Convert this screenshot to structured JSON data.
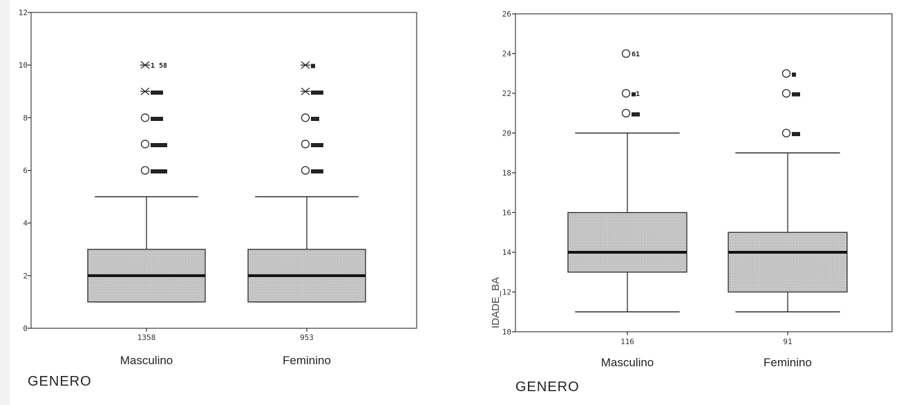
{
  "chart_data": [
    {
      "type": "box",
      "xlabel": "GENERO",
      "ylabel": "",
      "ylim": [
        0,
        12
      ],
      "yticks": [
        "0",
        "2",
        "4",
        "6",
        "8",
        "10",
        "12"
      ],
      "categories": [
        "Masculino",
        "Feminino"
      ],
      "n_labels": [
        "1358",
        "953"
      ],
      "boxes": [
        {
          "category": "Masculino",
          "whisker_low": 1,
          "q1": 1,
          "median": 2,
          "q3": 3,
          "whisker_high": 5,
          "outliers": [
            {
              "value": 6,
              "marker": "circle",
              "label": "■■■■"
            },
            {
              "value": 7,
              "marker": "circle",
              "label": "■■■■"
            },
            {
              "value": 8,
              "marker": "circle",
              "label": "■■■"
            },
            {
              "value": 9,
              "marker": "star",
              "label": "■■■"
            },
            {
              "value": 10,
              "marker": "star",
              "label": "1 58"
            }
          ]
        },
        {
          "category": "Feminino",
          "whisker_low": 1,
          "q1": 1,
          "median": 2,
          "q3": 3,
          "whisker_high": 5,
          "outliers": [
            {
              "value": 6,
              "marker": "circle",
              "label": "■■■"
            },
            {
              "value": 7,
              "marker": "circle",
              "label": "■■■"
            },
            {
              "value": 8,
              "marker": "circle",
              "label": "■■"
            },
            {
              "value": 9,
              "marker": "star",
              "label": "■■■"
            },
            {
              "value": 10,
              "marker": "star",
              "label": "■"
            }
          ]
        }
      ]
    },
    {
      "type": "box",
      "xlabel": "GENERO",
      "ylabel": "IDADE_BA",
      "ylim": [
        10,
        26
      ],
      "yticks": [
        "10",
        "12",
        "14",
        "16",
        "18",
        "20",
        "22",
        "24",
        "26"
      ],
      "categories": [
        "Masculino",
        "Feminino"
      ],
      "n_labels": [
        "116",
        "91"
      ],
      "boxes": [
        {
          "category": "Masculino",
          "whisker_low": 11,
          "q1": 13,
          "median": 14,
          "q3": 16,
          "whisker_high": 20,
          "outliers": [
            {
              "value": 21,
              "marker": "circle",
              "label": "■■"
            },
            {
              "value": 22,
              "marker": "circle",
              "label": "■1"
            },
            {
              "value": 24,
              "marker": "circle",
              "label": "61"
            }
          ]
        },
        {
          "category": "Feminino",
          "whisker_low": 11,
          "q1": 12,
          "median": 14,
          "q3": 15,
          "whisker_high": 19,
          "outliers": [
            {
              "value": 20,
              "marker": "circle",
              "label": "■■"
            },
            {
              "value": 22,
              "marker": "circle",
              "label": "■■"
            },
            {
              "value": 23,
              "marker": "circle",
              "label": "■"
            }
          ]
        }
      ]
    }
  ],
  "colors": {
    "box_fill": "#c9c9c9",
    "line": "#2a2a2a",
    "median": "#111111",
    "background": "#ffffff"
  }
}
